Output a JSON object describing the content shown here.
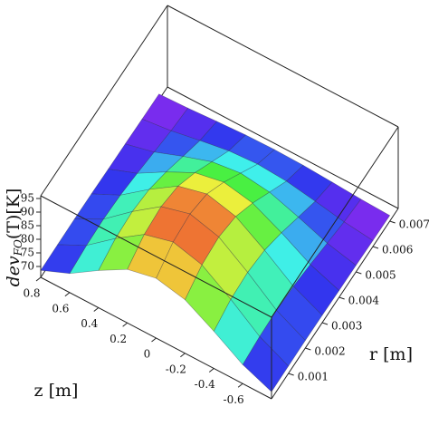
{
  "chart_data": {
    "type": "surface",
    "xlabel": "z [m]",
    "ylabel": "r [m]",
    "zlabel": {
      "main": "dev",
      "sub": "FO",
      "rest": "(T)[K]"
    },
    "x": [
      -0.8,
      -0.6,
      -0.4,
      -0.2,
      0,
      0.2,
      0.4,
      0.6,
      0.8
    ],
    "y": [
      0,
      0.001,
      0.002,
      0.003,
      0.004,
      0.005,
      0.006,
      0.007
    ],
    "values": [
      [
        68.6,
        73,
        79.7,
        85.7,
        88,
        85.7,
        79.7,
        73,
        68.6
      ],
      [
        68.7,
        74,
        82.1,
        89.2,
        92,
        89.2,
        82.1,
        74,
        68.7
      ],
      [
        68.8,
        74.3,
        82.7,
        90.1,
        93,
        90.1,
        82.7,
        74.3,
        68.8
      ],
      [
        68.7,
        73.8,
        81.5,
        88.3,
        91,
        88.3,
        81.5,
        73.8,
        68.7
      ],
      [
        68.5,
        72.5,
        78.6,
        83.9,
        86,
        83.9,
        78.6,
        72.5,
        68.5
      ],
      [
        68.4,
        71,
        75,
        78.6,
        80,
        78.6,
        75,
        71,
        68.4
      ],
      [
        68.2,
        69.5,
        71.5,
        73.3,
        74,
        73.3,
        71.5,
        69.5,
        68.2
      ],
      [
        68.1,
        68.5,
        69.2,
        69.8,
        70,
        69.8,
        69.2,
        68.5,
        68.1
      ]
    ],
    "xlim": [
      -0.8,
      0.8
    ],
    "xticks": [
      0.8,
      0.6,
      0.4,
      0.2,
      0,
      -0.2,
      -0.4,
      -0.6
    ],
    "ylim": [
      0,
      0.0075
    ],
    "yticks": [
      0.001,
      0.002,
      0.003,
      0.004,
      0.005,
      0.006,
      0.007
    ],
    "zlim": [
      66,
      96
    ],
    "zticks": [
      70,
      75,
      80,
      85,
      90,
      95
    ],
    "colormap": "rainbow"
  }
}
